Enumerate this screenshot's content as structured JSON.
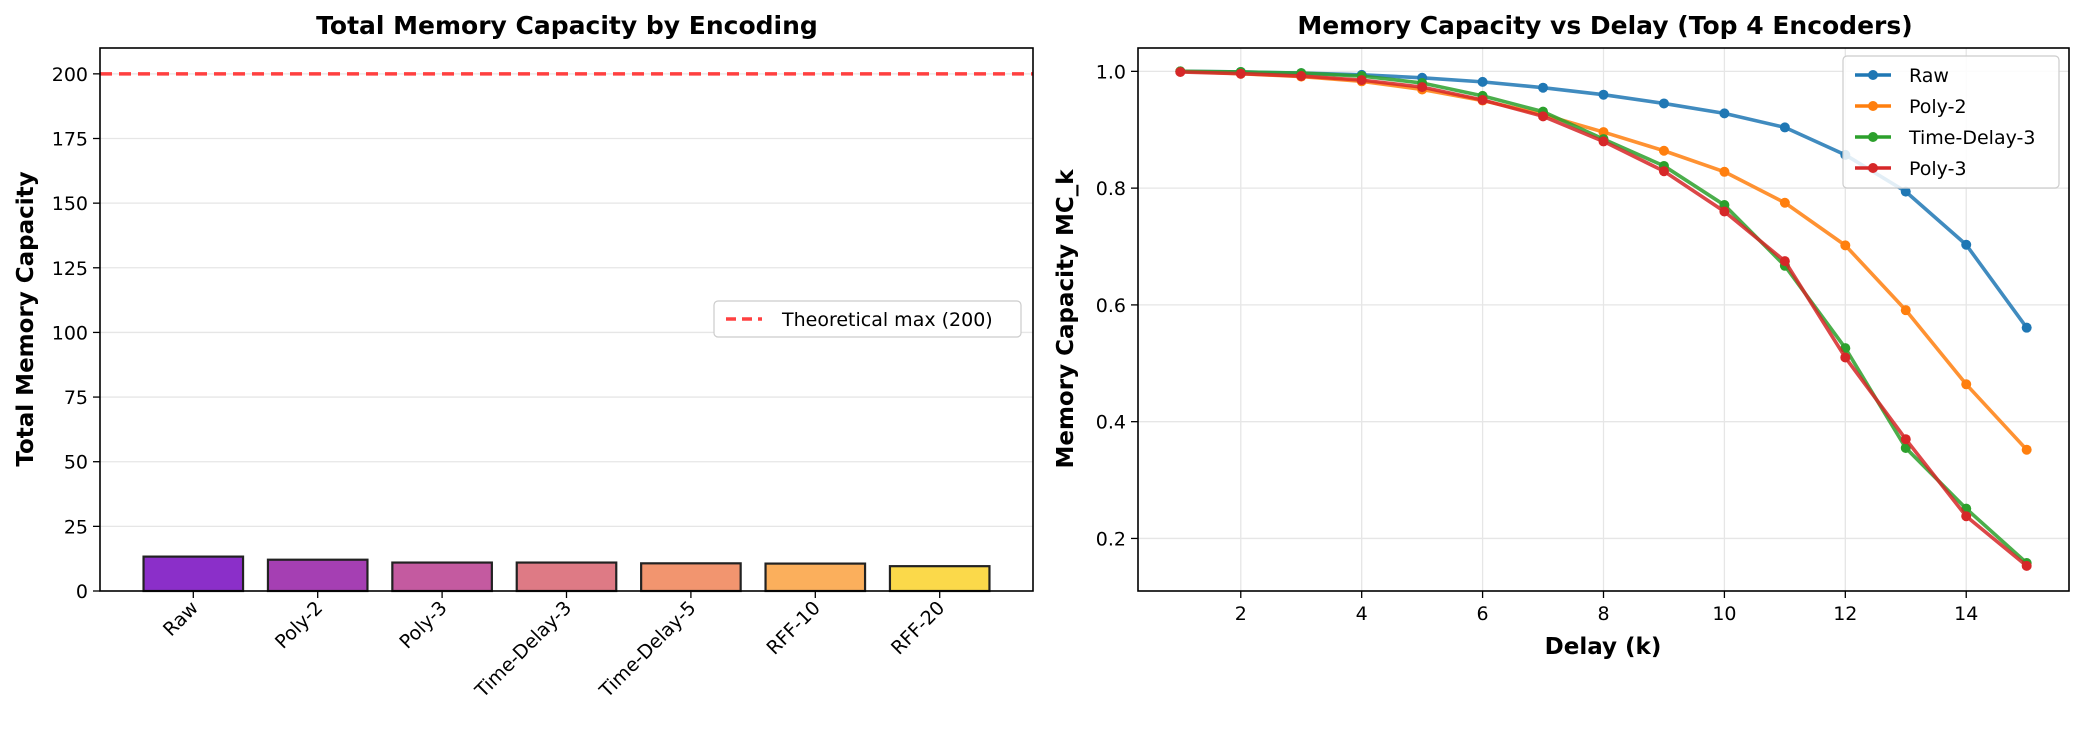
{
  "colors": {
    "threshold": "#ff4040",
    "grid": "#e6e6e6",
    "bar_edge": "#222222",
    "bar_gradient": [
      "#8b2fc9",
      "#a53fb3",
      "#c45aa0",
      "#de7a85",
      "#f2956f",
      "#fbaf5c",
      "#fbd94a"
    ],
    "series": [
      "#1f77b4",
      "#ff7f0e",
      "#2ca02c",
      "#d62728"
    ]
  },
  "chart_data": [
    {
      "type": "bar",
      "title": "Total Memory Capacity by Encoding",
      "xlabel": "",
      "ylabel": "Total Memory Capacity",
      "categories": [
        "Raw",
        "Poly-2",
        "Poly-3",
        "Time-Delay-3",
        "Time-Delay-5",
        "RFF-10",
        "RFF-20"
      ],
      "values": [
        13.3,
        12.1,
        11.0,
        11.0,
        10.7,
        10.6,
        9.6
      ],
      "ylim": [
        0,
        210
      ],
      "yticks": [
        0,
        25,
        50,
        75,
        100,
        125,
        150,
        175,
        200
      ],
      "reference_line": {
        "value": 200,
        "label": "Theoretical max (200)"
      },
      "grid": "y",
      "legend_position": "center-right"
    },
    {
      "type": "line",
      "title": "Memory Capacity vs Delay (Top 4 Encoders)",
      "xlabel": "Delay (k)",
      "ylabel": "Memory Capacity MC_k",
      "x": [
        1,
        2,
        3,
        4,
        5,
        6,
        7,
        8,
        9,
        10,
        11,
        12,
        13,
        14,
        15
      ],
      "xlim": [
        0.3,
        15.7
      ],
      "ylim": [
        0.11,
        1.04
      ],
      "xticks": [
        2,
        4,
        6,
        8,
        10,
        12,
        14
      ],
      "yticks": [
        0.2,
        0.4,
        0.6,
        0.8,
        1.0
      ],
      "grid": true,
      "legend_position": "top-right",
      "series": [
        {
          "name": "Raw",
          "values": [
            1.0,
            0.999,
            0.997,
            0.994,
            0.989,
            0.982,
            0.972,
            0.96,
            0.945,
            0.928,
            0.904,
            0.857,
            0.794,
            0.703,
            0.561
          ]
        },
        {
          "name": "Poly-2",
          "values": [
            1.0,
            0.996,
            0.991,
            0.983,
            0.969,
            0.95,
            0.926,
            0.896,
            0.864,
            0.828,
            0.775,
            0.702,
            0.591,
            0.464,
            0.352
          ]
        },
        {
          "name": "Time-Delay-3",
          "values": [
            1.0,
            0.999,
            0.997,
            0.992,
            0.98,
            0.958,
            0.931,
            0.884,
            0.838,
            0.771,
            0.667,
            0.526,
            0.355,
            0.251,
            0.158
          ]
        },
        {
          "name": "Poly-3",
          "values": [
            0.999,
            0.996,
            0.992,
            0.985,
            0.973,
            0.951,
            0.923,
            0.88,
            0.829,
            0.76,
            0.675,
            0.51,
            0.37,
            0.238,
            0.153
          ]
        }
      ]
    }
  ]
}
